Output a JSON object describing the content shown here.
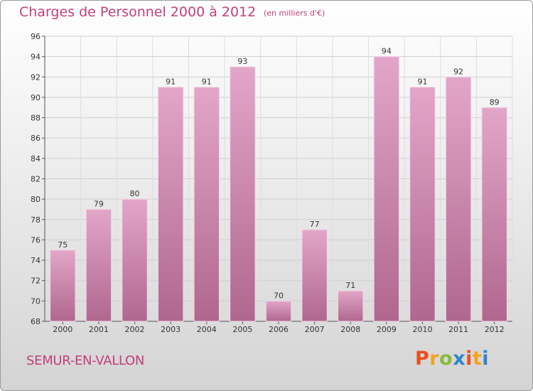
{
  "header": {
    "title": "Charges de Personnel 2000 à 2012",
    "subtitle": "(en milliers d'€)"
  },
  "footer": {
    "commune": "SEMUR-EN-VALLON",
    "logo_letters": [
      "P",
      "r",
      "o",
      "x",
      "i",
      "t",
      "i"
    ],
    "logo_colors": [
      "#e8501e",
      "#f2a31b",
      "#8ab93b",
      "#2f86c9",
      "#e8501e",
      "#f2a31b",
      "#2f86c9"
    ]
  },
  "colors": {
    "bar_top": "#e2a6c8",
    "bar_bottom": "#b0678f",
    "text_accent": "#c2407a",
    "grid": "#cfcfcf"
  },
  "chart_data": {
    "type": "bar",
    "title": "Charges de Personnel 2000 à 2012",
    "subtitle": "(en milliers d'€)",
    "categories": [
      "2000",
      "2001",
      "2002",
      "2003",
      "2004",
      "2005",
      "2006",
      "2007",
      "2008",
      "2009",
      "2010",
      "2011",
      "2012"
    ],
    "values": [
      75,
      79,
      80,
      91,
      91,
      93,
      70,
      77,
      71,
      94,
      91,
      92,
      89
    ],
    "ylim": [
      68,
      96
    ],
    "yticks": [
      68,
      70,
      72,
      74,
      76,
      78,
      80,
      82,
      84,
      86,
      88,
      90,
      92,
      94,
      96
    ],
    "grid": true,
    "xlabel": "",
    "ylabel": ""
  }
}
